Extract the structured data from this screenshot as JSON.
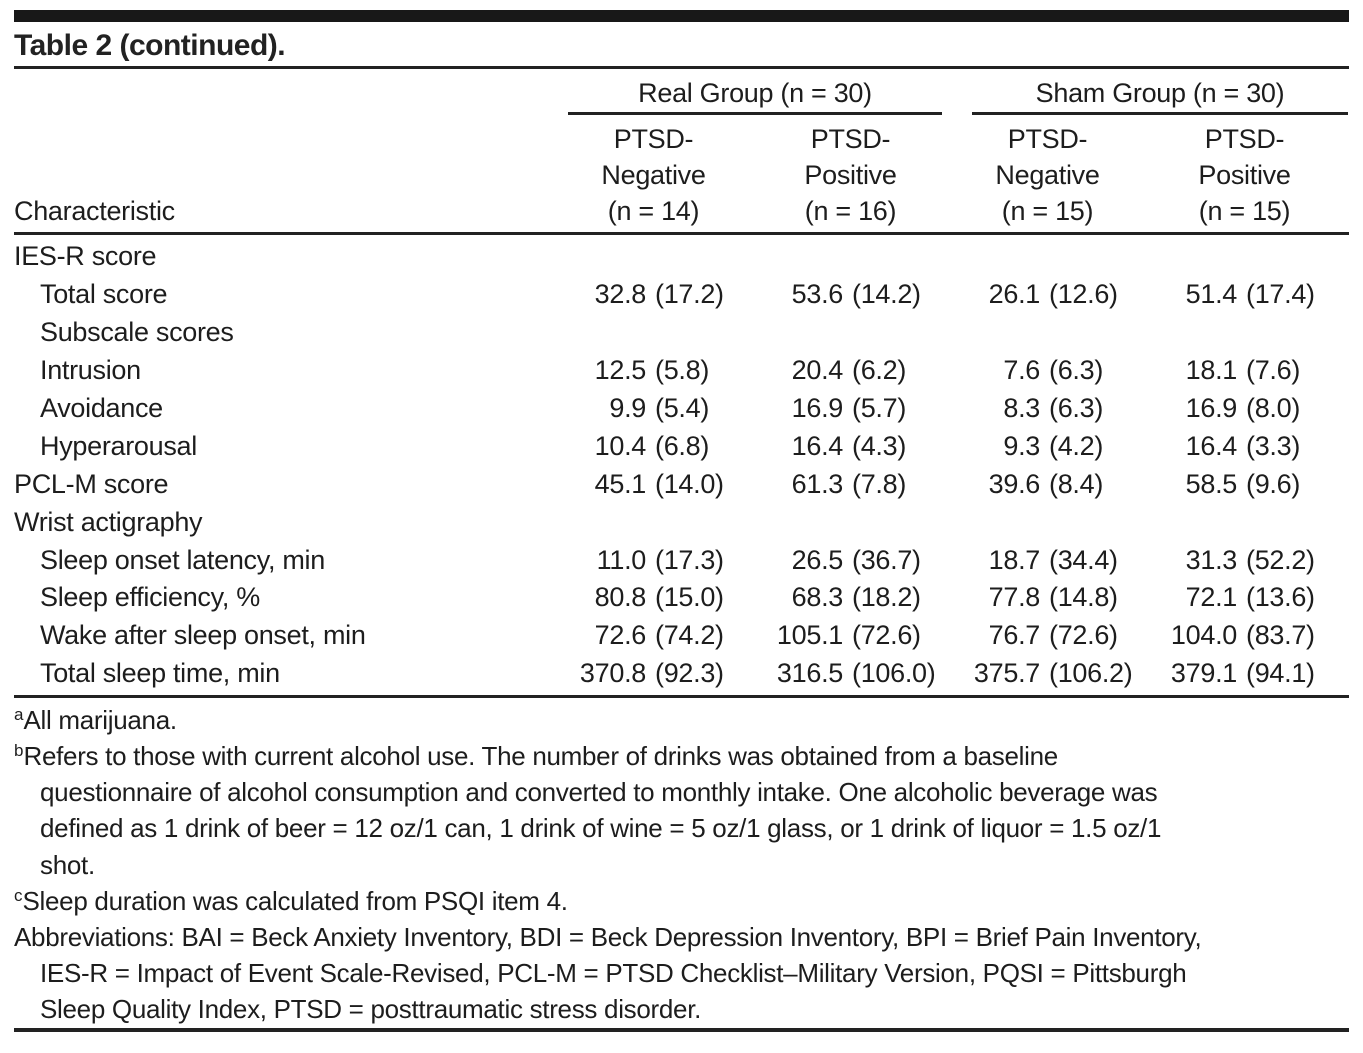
{
  "title": "Table 2 (continued).",
  "table": {
    "char_header": "Characteristic",
    "groups": [
      {
        "label": "Real Group (n = 30)",
        "cols": [
          {
            "lines": [
              "PTSD-",
              "Negative",
              "(n = 14)"
            ]
          },
          {
            "lines": [
              "PTSD-",
              "Positive",
              "(n = 16)"
            ]
          }
        ]
      },
      {
        "label": "Sham Group (n = 30)",
        "cols": [
          {
            "lines": [
              "PTSD-",
              "Negative",
              "(n = 15)"
            ]
          },
          {
            "lines": [
              "PTSD-",
              "Positive",
              "(n = 15)"
            ]
          }
        ]
      }
    ],
    "rows": [
      {
        "label": "IES-R score",
        "indent": 0,
        "values": [
          null,
          null,
          null,
          null
        ]
      },
      {
        "label": "Total score",
        "indent": 1,
        "values": [
          [
            "32.8",
            "(17.2)"
          ],
          [
            "53.6",
            "(14.2)"
          ],
          [
            "26.1",
            "(12.6)"
          ],
          [
            "51.4",
            "(17.4)"
          ]
        ]
      },
      {
        "label": "Subscale scores",
        "indent": 1,
        "values": [
          null,
          null,
          null,
          null
        ]
      },
      {
        "label": "Intrusion",
        "indent": 1,
        "values": [
          [
            "12.5",
            "(5.8)"
          ],
          [
            "20.4",
            "(6.2)"
          ],
          [
            "7.6",
            "(6.3)"
          ],
          [
            "18.1",
            "(7.6)"
          ]
        ]
      },
      {
        "label": "Avoidance",
        "indent": 1,
        "values": [
          [
            "9.9",
            "(5.4)"
          ],
          [
            "16.9",
            "(5.7)"
          ],
          [
            "8.3",
            "(6.3)"
          ],
          [
            "16.9",
            "(8.0)"
          ]
        ]
      },
      {
        "label": "Hyperarousal",
        "indent": 1,
        "values": [
          [
            "10.4",
            "(6.8)"
          ],
          [
            "16.4",
            "(4.3)"
          ],
          [
            "9.3",
            "(4.2)"
          ],
          [
            "16.4",
            "(3.3)"
          ]
        ]
      },
      {
        "label": "PCL-M score",
        "indent": 0,
        "values": [
          [
            "45.1",
            "(14.0)"
          ],
          [
            "61.3",
            "(7.8)"
          ],
          [
            "39.6",
            "(8.4)"
          ],
          [
            "58.5",
            "(9.6)"
          ]
        ]
      },
      {
        "label": "Wrist actigraphy",
        "indent": 0,
        "values": [
          null,
          null,
          null,
          null
        ]
      },
      {
        "label": "Sleep onset latency, min",
        "indent": 1,
        "values": [
          [
            "11.0",
            "(17.3)"
          ],
          [
            "26.5",
            "(36.7)"
          ],
          [
            "18.7",
            "(34.4)"
          ],
          [
            "31.3",
            "(52.2)"
          ]
        ]
      },
      {
        "label": "Sleep efficiency, %",
        "indent": 1,
        "values": [
          [
            "80.8",
            "(15.0)"
          ],
          [
            "68.3",
            "(18.2)"
          ],
          [
            "77.8",
            "(14.8)"
          ],
          [
            "72.1",
            "(13.6)"
          ]
        ]
      },
      {
        "label": "Wake after sleep onset, min",
        "indent": 1,
        "values": [
          [
            "72.6",
            "(74.2)"
          ],
          [
            "105.1",
            "(72.6)"
          ],
          [
            "76.7",
            "(72.6)"
          ],
          [
            "104.0",
            "(83.7)"
          ]
        ]
      },
      {
        "label": "Total sleep time, min",
        "indent": 1,
        "values": [
          [
            "370.8",
            "(92.3)"
          ],
          [
            "316.5",
            "(106.0)"
          ],
          [
            "375.7",
            "(106.2)"
          ],
          [
            "379.1",
            "(94.1)"
          ]
        ]
      }
    ]
  },
  "footnotes": [
    {
      "marker": "a",
      "lines": [
        "All marijuana."
      ]
    },
    {
      "marker": "b",
      "lines": [
        "Refers to those with current alcohol use. The number of drinks was obtained from a baseline",
        "questionnaire of alcohol consumption and converted to monthly intake. One alcoholic beverage was",
        "defined as 1 drink of beer = 12 oz/1 can, 1 drink of wine = 5 oz/1 glass, or 1 drink of liquor = 1.5 oz/1",
        "shot."
      ]
    },
    {
      "marker": "c",
      "lines": [
        "Sleep duration was calculated from PSQI item 4."
      ]
    },
    {
      "marker": "",
      "lines": [
        "Abbreviations: BAI = Beck Anxiety Inventory, BDI = Beck Depression Inventory, BPI = Brief Pain Inventory,",
        "IES-R = Impact of Event Scale-Revised, PCL-M = PTSD Checklist–Military Version, PQSI = Pittsburgh",
        "Sleep Quality Index, PTSD = posttraumatic stress disorder."
      ]
    }
  ],
  "colors": {
    "text": "#1d1d1d",
    "rule": "#222222",
    "background": "#ffffff"
  }
}
